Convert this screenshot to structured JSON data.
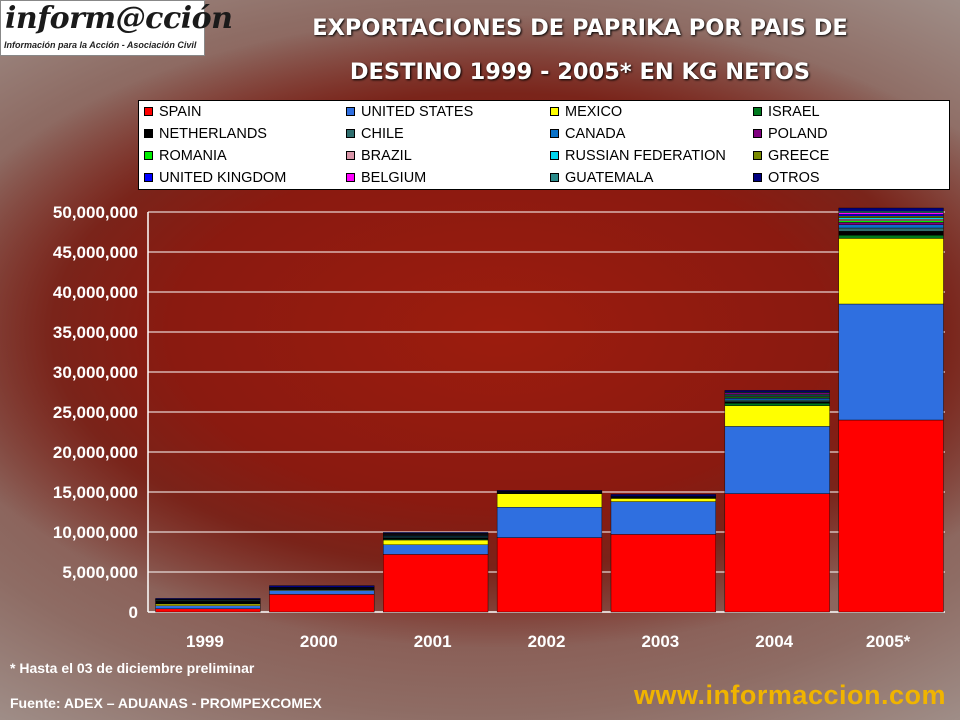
{
  "logo": {
    "main": "inform@cción",
    "subtitle": "Información para la Acción - Asociación Civil"
  },
  "title_line1": "EXPORTACIONES DE PAPRIKA POR PAIS DE",
  "title_line2": "DESTINO 1999 - 2005* EN KG NETOS",
  "footnote": "* Hasta el 03 de diciembre preliminar",
  "source": "Fuente: ADEX – ADUANAS - PROMPEXCOMEX",
  "website": "www.informaccion.com",
  "colors": {
    "SPAIN": "#ff0000",
    "UNITED STATES": "#2f6fe0",
    "MEXICO": "#ffff00",
    "ISRAEL": "#007a1e",
    "NETHERLANDS": "#000000",
    "CHILE": "#2f6e6e",
    "CANADA": "#0a72c8",
    "POLAND": "#800080",
    "ROMANIA": "#00ee00",
    "BRAZIL": "#d995a8",
    "RUSSIAN FEDERATION": "#00d5ee",
    "GREECE": "#7a8a00",
    "UNITED KINGDOM": "#0000ff",
    "BELGIUM": "#ff00ff",
    "GUATEMALA": "#2a8a8a",
    "OTROS": "#000080"
  },
  "chart_data": {
    "type": "bar",
    "stacked": true,
    "categories": [
      "1999",
      "2000",
      "2001",
      "2002",
      "2003",
      "2004",
      "2005*"
    ],
    "ylim": [
      0,
      50000000
    ],
    "yticks": [
      "0",
      "5,000,000",
      "10,000,000",
      "15,000,000",
      "20,000,000",
      "25,000,000",
      "30,000,000",
      "35,000,000",
      "40,000,000",
      "45,000,000",
      "50,000,000"
    ],
    "grid": true,
    "legend_position": "top",
    "series": [
      {
        "name": "SPAIN",
        "values": [
          400000,
          2200000,
          7200000,
          9300000,
          9700000,
          14800000,
          24000000
        ]
      },
      {
        "name": "UNITED STATES",
        "values": [
          400000,
          500000,
          1200000,
          3800000,
          4100000,
          8400000,
          14500000
        ]
      },
      {
        "name": "MEXICO",
        "values": [
          200000,
          100000,
          600000,
          1700000,
          400000,
          2600000,
          8200000
        ]
      },
      {
        "name": "ISRAEL",
        "values": [
          50000,
          50000,
          100000,
          50000,
          50000,
          300000,
          400000
        ]
      },
      {
        "name": "NETHERLANDS",
        "values": [
          300000,
          100000,
          150000,
          100000,
          100000,
          200000,
          500000
        ]
      },
      {
        "name": "CHILE",
        "values": [
          100000,
          50000,
          100000,
          50000,
          50000,
          200000,
          400000
        ]
      },
      {
        "name": "CANADA",
        "values": [
          50000,
          50000,
          100000,
          50000,
          50000,
          200000,
          400000
        ]
      },
      {
        "name": "POLAND",
        "values": [
          0,
          0,
          50000,
          0,
          0,
          100000,
          300000
        ]
      },
      {
        "name": "ROMANIA",
        "values": [
          0,
          0,
          50000,
          0,
          0,
          100000,
          200000
        ]
      },
      {
        "name": "BRAZIL",
        "values": [
          0,
          0,
          50000,
          0,
          0,
          100000,
          200000
        ]
      },
      {
        "name": "RUSSIAN FEDERATION",
        "values": [
          0,
          0,
          50000,
          0,
          0,
          100000,
          200000
        ]
      },
      {
        "name": "GREECE",
        "values": [
          50000,
          0,
          50000,
          0,
          0,
          100000,
          200000
        ]
      },
      {
        "name": "UNITED KINGDOM",
        "values": [
          50000,
          50000,
          50000,
          50000,
          50000,
          100000,
          200000
        ]
      },
      {
        "name": "BELGIUM",
        "values": [
          0,
          0,
          50000,
          0,
          0,
          100000,
          200000
        ]
      },
      {
        "name": "GUATEMALA",
        "values": [
          0,
          0,
          50000,
          0,
          0,
          100000,
          200000
        ]
      },
      {
        "name": "OTROS",
        "values": [
          100000,
          200000,
          100000,
          100000,
          200000,
          200000,
          400000
        ]
      }
    ]
  }
}
